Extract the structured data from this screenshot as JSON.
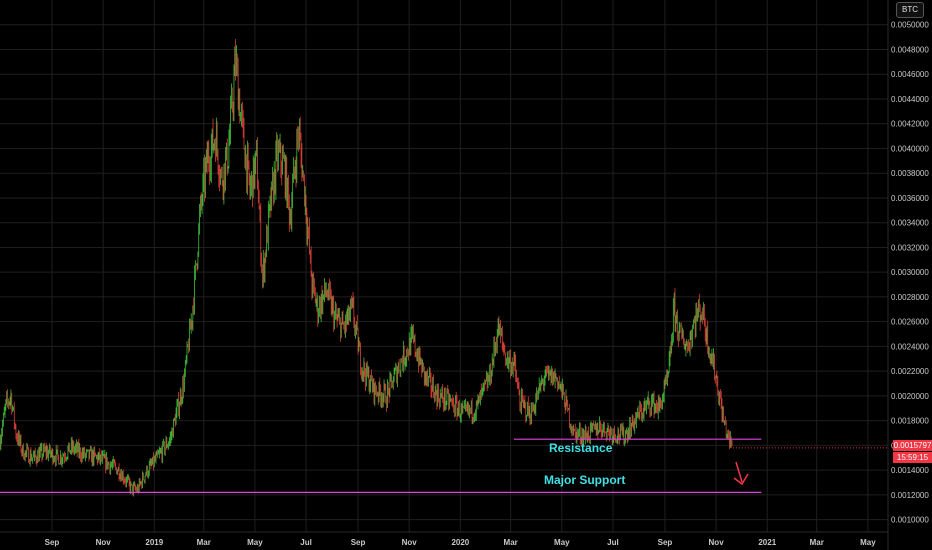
{
  "symbol": "BTC",
  "price_tag": {
    "price": "0.0015797",
    "countdown": "15:59:15",
    "color": "#f23645"
  },
  "colors": {
    "up": "#3ec13a",
    "down": "#e0403a",
    "line": "#e040e0",
    "annotation_text": "#40e0e8",
    "arrow": "#f23645"
  },
  "annotations": [
    {
      "label": "Resistance",
      "price": 0.00165,
      "from": "2020-03-05",
      "to": "2020-12-25"
    },
    {
      "label": "Major Support",
      "price": 0.00122,
      "from": "2018-07-01",
      "to": "2020-12-25"
    }
  ],
  "chart_data": {
    "type": "candlestick",
    "title": "",
    "xlabel": "",
    "ylabel": "",
    "ylim": [
      0.0009,
      0.0052
    ],
    "xlim": [
      "2018-07-01",
      "2021-05-25"
    ],
    "y_ticks": [
      "0.0010000",
      "0.0012000",
      "0.0014000",
      "0.0016000",
      "0.0018000",
      "0.0020000",
      "0.0022000",
      "0.0024000",
      "0.0026000",
      "0.0028000",
      "0.0030000",
      "0.0032000",
      "0.0034000",
      "0.0036000",
      "0.0038000",
      "0.0040000",
      "0.0042000",
      "0.0044000",
      "0.0046000",
      "0.0048000",
      "0.0050000"
    ],
    "x_ticks": [
      {
        "label": "Sep",
        "date": "2018-09-01"
      },
      {
        "label": "Nov",
        "date": "2018-11-01"
      },
      {
        "label": "2019",
        "date": "2019-01-01"
      },
      {
        "label": "Mar",
        "date": "2019-03-01"
      },
      {
        "label": "May",
        "date": "2019-05-01"
      },
      {
        "label": "Jul",
        "date": "2019-07-01"
      },
      {
        "label": "Sep",
        "date": "2019-09-01"
      },
      {
        "label": "Nov",
        "date": "2019-11-01"
      },
      {
        "label": "2020",
        "date": "2020-01-01"
      },
      {
        "label": "Mar",
        "date": "2020-03-01"
      },
      {
        "label": "May",
        "date": "2020-05-01"
      },
      {
        "label": "Jul",
        "date": "2020-07-01"
      },
      {
        "label": "Sep",
        "date": "2020-09-01"
      },
      {
        "label": "Nov",
        "date": "2020-11-01"
      },
      {
        "label": "2021",
        "date": "2021-01-01"
      },
      {
        "label": "Mar",
        "date": "2021-03-01"
      },
      {
        "label": "May",
        "date": "2021-05-01"
      }
    ],
    "grid": true,
    "series": [
      {
        "points": [
          [
            "2018-07-01",
            0.00165
          ],
          [
            "2018-07-08",
            0.00192
          ],
          [
            "2018-07-14",
            0.002
          ],
          [
            "2018-07-20",
            0.0017
          ],
          [
            "2018-07-28",
            0.00155
          ],
          [
            "2018-08-10",
            0.0015
          ],
          [
            "2018-08-25",
            0.00155
          ],
          [
            "2018-09-10",
            0.0015
          ],
          [
            "2018-09-25",
            0.00158
          ],
          [
            "2018-10-10",
            0.00152
          ],
          [
            "2018-10-25",
            0.0015
          ],
          [
            "2018-11-08",
            0.00145
          ],
          [
            "2018-11-20",
            0.0014
          ],
          [
            "2018-12-05",
            0.00125
          ],
          [
            "2018-12-12",
            0.00124
          ],
          [
            "2018-12-22",
            0.00138
          ],
          [
            "2019-01-05",
            0.0015
          ],
          [
            "2019-01-20",
            0.00165
          ],
          [
            "2019-02-05",
            0.0021
          ],
          [
            "2019-02-15",
            0.00265
          ],
          [
            "2019-02-25",
            0.0035
          ],
          [
            "2019-03-05",
            0.0039
          ],
          [
            "2019-03-15",
            0.0041
          ],
          [
            "2019-03-22",
            0.00375
          ],
          [
            "2019-03-30",
            0.00395
          ],
          [
            "2019-04-08",
            0.0047
          ],
          [
            "2019-04-15",
            0.0042
          ],
          [
            "2019-04-25",
            0.00365
          ],
          [
            "2019-05-03",
            0.0039
          ],
          [
            "2019-05-10",
            0.00295
          ],
          [
            "2019-05-18",
            0.00345
          ],
          [
            "2019-05-28",
            0.00395
          ],
          [
            "2019-06-05",
            0.00385
          ],
          [
            "2019-06-12",
            0.00345
          ],
          [
            "2019-06-22",
            0.00415
          ],
          [
            "2019-06-30",
            0.0036
          ],
          [
            "2019-07-08",
            0.0029
          ],
          [
            "2019-07-15",
            0.0027
          ],
          [
            "2019-07-25",
            0.00285
          ],
          [
            "2019-08-05",
            0.00262
          ],
          [
            "2019-08-15",
            0.00255
          ],
          [
            "2019-08-25",
            0.0027
          ],
          [
            "2019-09-05",
            0.00225
          ],
          [
            "2019-09-20",
            0.00205
          ],
          [
            "2019-10-05",
            0.002
          ],
          [
            "2019-10-20",
            0.00225
          ],
          [
            "2019-11-05",
            0.00245
          ],
          [
            "2019-11-20",
            0.00215
          ],
          [
            "2019-12-05",
            0.002
          ],
          [
            "2019-12-20",
            0.00195
          ],
          [
            "2020-01-05",
            0.00185
          ],
          [
            "2020-01-20",
            0.0019
          ],
          [
            "2020-02-05",
            0.00215
          ],
          [
            "2020-02-15",
            0.00255
          ],
          [
            "2020-02-25",
            0.0023
          ],
          [
            "2020-03-05",
            0.00225
          ],
          [
            "2020-03-12",
            0.00195
          ],
          [
            "2020-03-25",
            0.00185
          ],
          [
            "2020-04-10",
            0.00215
          ],
          [
            "2020-04-25",
            0.00215
          ],
          [
            "2020-05-05",
            0.00195
          ],
          [
            "2020-05-15",
            0.0017
          ],
          [
            "2020-05-30",
            0.00168
          ],
          [
            "2020-06-15",
            0.00175
          ],
          [
            "2020-07-01",
            0.0017
          ],
          [
            "2020-07-15",
            0.00168
          ],
          [
            "2020-08-01",
            0.00185
          ],
          [
            "2020-08-15",
            0.00195
          ],
          [
            "2020-08-25",
            0.0019
          ],
          [
            "2020-09-05",
            0.00215
          ],
          [
            "2020-09-12",
            0.0027
          ],
          [
            "2020-09-18",
            0.0025
          ],
          [
            "2020-09-28",
            0.0024
          ],
          [
            "2020-10-08",
            0.00265
          ],
          [
            "2020-10-15",
            0.0027
          ],
          [
            "2020-10-22",
            0.00245
          ],
          [
            "2020-11-01",
            0.00215
          ],
          [
            "2020-11-10",
            0.0018
          ],
          [
            "2020-11-16",
            0.00165
          ],
          [
            "2020-11-21",
            0.00158
          ]
        ]
      }
    ]
  }
}
